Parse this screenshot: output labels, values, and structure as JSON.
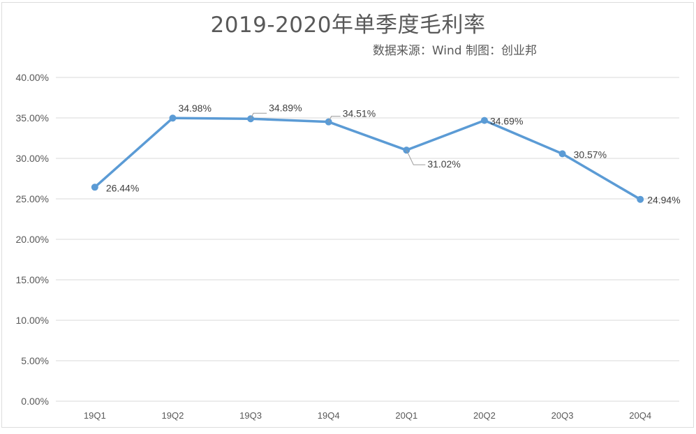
{
  "chart_data": {
    "type": "line",
    "title": "2019-2020年单季度毛利率",
    "subtitle": "数据来源：Wind 制图：创业邦",
    "xlabel": "",
    "ylabel": "",
    "categories": [
      "19Q1",
      "19Q2",
      "19Q3",
      "19Q4",
      "20Q1",
      "20Q2",
      "20Q3",
      "20Q4"
    ],
    "series": [
      {
        "name": "单季度毛利率",
        "values": [
          26.44,
          34.98,
          34.89,
          34.51,
          31.02,
          34.69,
          30.57,
          24.94
        ],
        "labels": [
          "26.44%",
          "34.98%",
          "34.89%",
          "34.51%",
          "31.02%",
          "34.69%",
          "30.57%",
          "24.94%"
        ]
      }
    ],
    "ylim": [
      0,
      40
    ],
    "yticks": [
      "0.00%",
      "5.00%",
      "10.00%",
      "15.00%",
      "20.00%",
      "25.00%",
      "30.00%",
      "35.00%",
      "40.00%"
    ],
    "grid": true,
    "legend": "none",
    "colors": {
      "line": "#5b9bd5",
      "grid": "#d9d9d9",
      "text": "#595959"
    }
  }
}
